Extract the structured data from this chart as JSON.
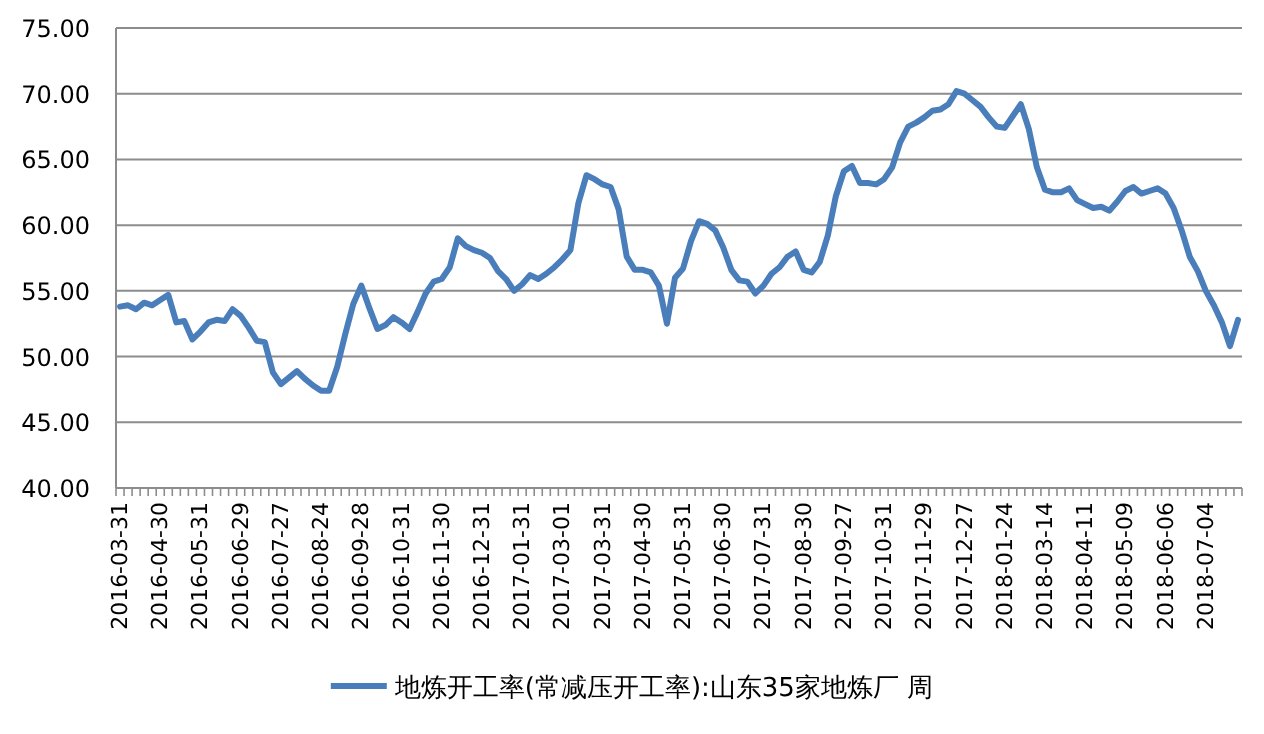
{
  "chart_data": {
    "type": "line",
    "categories": [
      "2016-03-31",
      null,
      null,
      null,
      null,
      "2016-04-30",
      null,
      null,
      null,
      null,
      "2016-05-31",
      null,
      null,
      null,
      null,
      "2016-06-29",
      null,
      null,
      null,
      null,
      "2016-07-27",
      null,
      null,
      null,
      null,
      "2016-08-24",
      null,
      null,
      null,
      null,
      "2016-09-28",
      null,
      null,
      null,
      null,
      "2016-10-31",
      null,
      null,
      null,
      null,
      "2016-11-30",
      null,
      null,
      null,
      null,
      "2016-12-31",
      null,
      null,
      null,
      null,
      "2017-01-31",
      null,
      null,
      null,
      null,
      "2017-03-01",
      null,
      null,
      null,
      null,
      "2017-03-31",
      null,
      null,
      null,
      null,
      "2017-04-30",
      null,
      null,
      null,
      null,
      "2017-05-31",
      null,
      null,
      null,
      null,
      "2017-06-30",
      null,
      null,
      null,
      null,
      "2017-07-31",
      null,
      null,
      null,
      null,
      "2017-08-30",
      null,
      null,
      null,
      null,
      "2017-09-27",
      null,
      null,
      null,
      null,
      "2017-10-31",
      null,
      null,
      null,
      null,
      "2017-11-29",
      null,
      null,
      null,
      null,
      "2017-12-27",
      null,
      null,
      null,
      null,
      "2018-01-24",
      null,
      null,
      null,
      null,
      "2018-03-14",
      null,
      null,
      null,
      null,
      "2018-04-11",
      null,
      null,
      null,
      null,
      "2018-05-09",
      null,
      null,
      null,
      null,
      "2018-06-06",
      null,
      null,
      null,
      null,
      "2018-07-04",
      null,
      null,
      null,
      null
    ],
    "series": [
      {
        "name": "地炼开工率(常减压开工率):山东35家地炼厂  周",
        "color": "#4a7ebb",
        "values": [
          53.8,
          53.9,
          53.6,
          54.1,
          53.9,
          54.3,
          54.7,
          52.6,
          52.7,
          51.3,
          51.9,
          52.6,
          52.8,
          52.7,
          53.6,
          53.1,
          52.2,
          51.2,
          51.1,
          48.8,
          47.9,
          48.4,
          48.9,
          48.3,
          47.8,
          47.4,
          47.4,
          49.2,
          51.7,
          54.0,
          55.4,
          53.7,
          52.1,
          52.4,
          53.0,
          52.6,
          52.1,
          53.4,
          54.8,
          55.7,
          55.9,
          56.8,
          59.0,
          58.4,
          58.1,
          57.9,
          57.5,
          56.5,
          55.9,
          55.0,
          55.5,
          56.2,
          55.9,
          56.3,
          56.8,
          57.4,
          58.1,
          61.7,
          63.8,
          63.5,
          63.1,
          62.9,
          61.2,
          57.6,
          56.6,
          56.6,
          56.4,
          55.4,
          52.5,
          56.0,
          56.7,
          58.8,
          60.3,
          60.1,
          59.6,
          58.3,
          56.6,
          55.8,
          55.7,
          54.8,
          55.4,
          56.3,
          56.8,
          57.6,
          58.0,
          56.6,
          56.4,
          57.2,
          59.2,
          62.2,
          64.1,
          64.5,
          63.2,
          63.2,
          63.1,
          63.5,
          64.4,
          66.3,
          67.5,
          67.8,
          68.2,
          68.7,
          68.8,
          69.2,
          70.2,
          70.0,
          69.5,
          69.0,
          68.2,
          67.5,
          67.4,
          68.3,
          69.2,
          67.3,
          64.4,
          62.7,
          62.5,
          62.5,
          62.8,
          61.9,
          61.6,
          61.3,
          61.4,
          61.1,
          61.8,
          62.6,
          62.9,
          62.4,
          62.6,
          62.8,
          62.4,
          61.3,
          59.6,
          57.6,
          56.5,
          55.0,
          53.9,
          52.6,
          50.8,
          52.8
        ]
      }
    ],
    "ylim": [
      40,
      75
    ],
    "yticks": [
      {
        "value": 40,
        "label": "40.00"
      },
      {
        "value": 45,
        "label": "45.00"
      },
      {
        "value": 50,
        "label": "50.00"
      },
      {
        "value": 55,
        "label": "55.00"
      },
      {
        "value": 60,
        "label": "60.00"
      },
      {
        "value": 65,
        "label": "65.00"
      },
      {
        "value": 70,
        "label": "70.00"
      },
      {
        "value": 75,
        "label": "75.00"
      }
    ],
    "grid": "y",
    "legend": "bottom"
  }
}
